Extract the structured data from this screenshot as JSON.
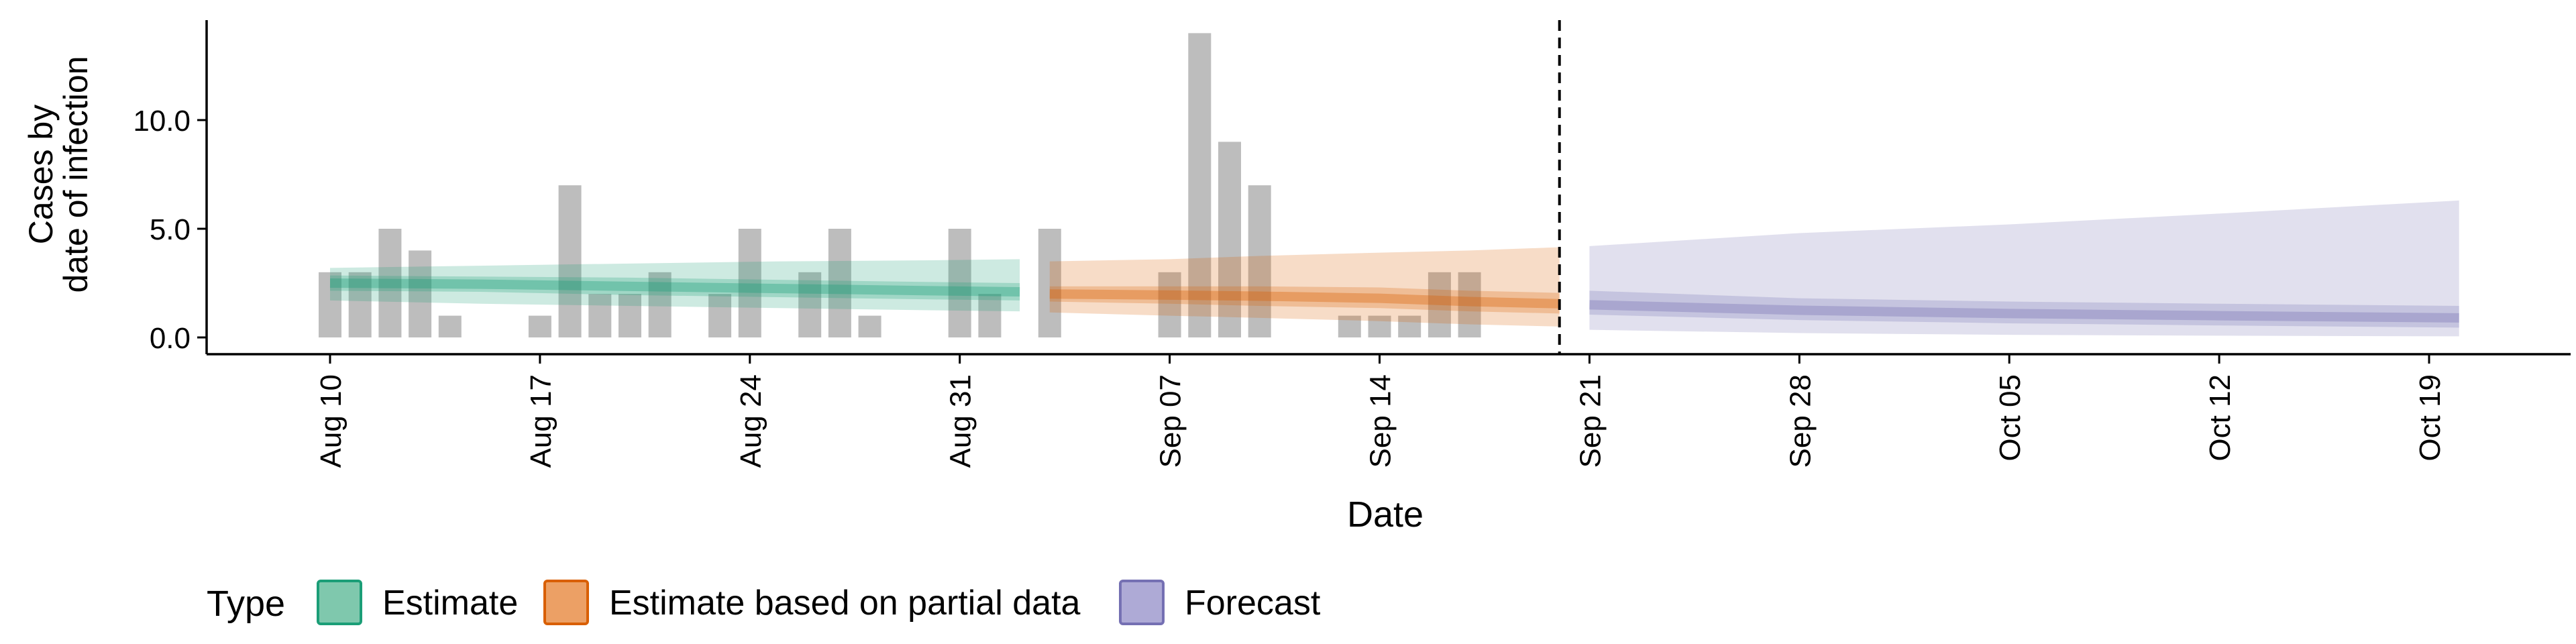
{
  "chart_data": {
    "type": "bar",
    "title": "",
    "xlabel": "Date",
    "ylabel_lines": [
      "Cases by",
      "date of infection"
    ],
    "ylim": [
      0,
      14
    ],
    "y_ticks": [
      0,
      5,
      10
    ],
    "y_tick_labels": [
      "0.0",
      "5.0",
      "10.0"
    ],
    "x_ticks": [
      "2020-08-10",
      "2020-08-17",
      "2020-08-24",
      "2020-08-31",
      "2020-09-07",
      "2020-09-14",
      "2020-09-21",
      "2020-09-28",
      "2020-10-05",
      "2020-10-12",
      "2020-10-19"
    ],
    "x_tick_labels": [
      "Aug 10",
      "Aug 17",
      "Aug 24",
      "Aug 31",
      "Sep 07",
      "Sep 14",
      "Sep 21",
      "Sep 28",
      "Oct 05",
      "Oct 12",
      "Oct 19"
    ],
    "xlim": [
      "2020-08-06",
      "2020-10-22"
    ],
    "forecast_start": "2020-09-20",
    "bars": {
      "dates": [
        "2020-08-10",
        "2020-08-11",
        "2020-08-12",
        "2020-08-13",
        "2020-08-14",
        "2020-08-15",
        "2020-08-16",
        "2020-08-17",
        "2020-08-18",
        "2020-08-19",
        "2020-08-20",
        "2020-08-21",
        "2020-08-22",
        "2020-08-23",
        "2020-08-24",
        "2020-08-25",
        "2020-08-26",
        "2020-08-27",
        "2020-08-28",
        "2020-08-29",
        "2020-08-30",
        "2020-08-31",
        "2020-09-01",
        "2020-09-02",
        "2020-09-03",
        "2020-09-04",
        "2020-09-05",
        "2020-09-06",
        "2020-09-07",
        "2020-09-08",
        "2020-09-09",
        "2020-09-10",
        "2020-09-11",
        "2020-09-12",
        "2020-09-13",
        "2020-09-14",
        "2020-09-15",
        "2020-09-16",
        "2020-09-17",
        "2020-09-18",
        "2020-09-19"
      ],
      "values": [
        3,
        3,
        5,
        4,
        1,
        0,
        0,
        1,
        7,
        2,
        2,
        3,
        0,
        2,
        5,
        0,
        3,
        5,
        1,
        0,
        0,
        5,
        2,
        0,
        5,
        0,
        0,
        0,
        3,
        14,
        9,
        7,
        0,
        0,
        1,
        1,
        1,
        3,
        3,
        0,
        0
      ]
    },
    "series": [
      {
        "name": "Estimate",
        "color": "#1b9e77",
        "dates": [
          "2020-08-10",
          "2020-08-15",
          "2020-08-20",
          "2020-08-25",
          "2020-08-30",
          "2020-09-02"
        ],
        "median": [
          2.5,
          2.45,
          2.35,
          2.25,
          2.15,
          2.1
        ],
        "lower_50": [
          2.15,
          2.1,
          1.95,
          1.85,
          1.75,
          1.7
        ],
        "upper_50": [
          2.85,
          2.8,
          2.75,
          2.65,
          2.55,
          2.5
        ],
        "lower_90": [
          1.7,
          1.55,
          1.45,
          1.35,
          1.25,
          1.2
        ],
        "upper_90": [
          3.2,
          3.3,
          3.4,
          3.5,
          3.55,
          3.6
        ]
      },
      {
        "name": "Estimate based on partial data",
        "color": "#d95f02",
        "dates": [
          "2020-09-03",
          "2020-09-07",
          "2020-09-10",
          "2020-09-14",
          "2020-09-17",
          "2020-09-20"
        ],
        "median": [
          2.0,
          1.95,
          1.9,
          1.8,
          1.65,
          1.55
        ],
        "lower_50": [
          1.65,
          1.55,
          1.45,
          1.35,
          1.2,
          1.1
        ],
        "upper_50": [
          2.35,
          2.35,
          2.35,
          2.3,
          2.15,
          2.05
        ],
        "lower_90": [
          1.15,
          1.0,
          0.9,
          0.75,
          0.6,
          0.5
        ],
        "upper_90": [
          3.5,
          3.6,
          3.75,
          3.9,
          4.0,
          4.15
        ]
      },
      {
        "name": "Forecast",
        "color": "#7570b3",
        "dates": [
          "2020-09-21",
          "2020-09-28",
          "2020-10-05",
          "2020-10-12",
          "2020-10-20"
        ],
        "median": [
          1.5,
          1.25,
          1.1,
          1.0,
          0.9
        ],
        "lower_50": [
          1.05,
          0.8,
          0.65,
          0.55,
          0.45
        ],
        "upper_50": [
          2.15,
          1.8,
          1.65,
          1.55,
          1.45
        ],
        "lower_90": [
          0.35,
          0.2,
          0.12,
          0.08,
          0.05
        ],
        "upper_90": [
          4.2,
          4.8,
          5.2,
          5.7,
          6.3
        ]
      }
    ],
    "legend": {
      "title": "Type",
      "position": "bottom-left",
      "entries": [
        {
          "label": "Estimate",
          "fill": "#7fc8ad",
          "stroke": "#1b9e77"
        },
        {
          "label": "Estimate based on partial data",
          "fill": "#eca065",
          "stroke": "#d95f02"
        },
        {
          "label": "Forecast",
          "fill": "#aeaad6",
          "stroke": "#7570b3"
        }
      ]
    },
    "grid": false
  }
}
